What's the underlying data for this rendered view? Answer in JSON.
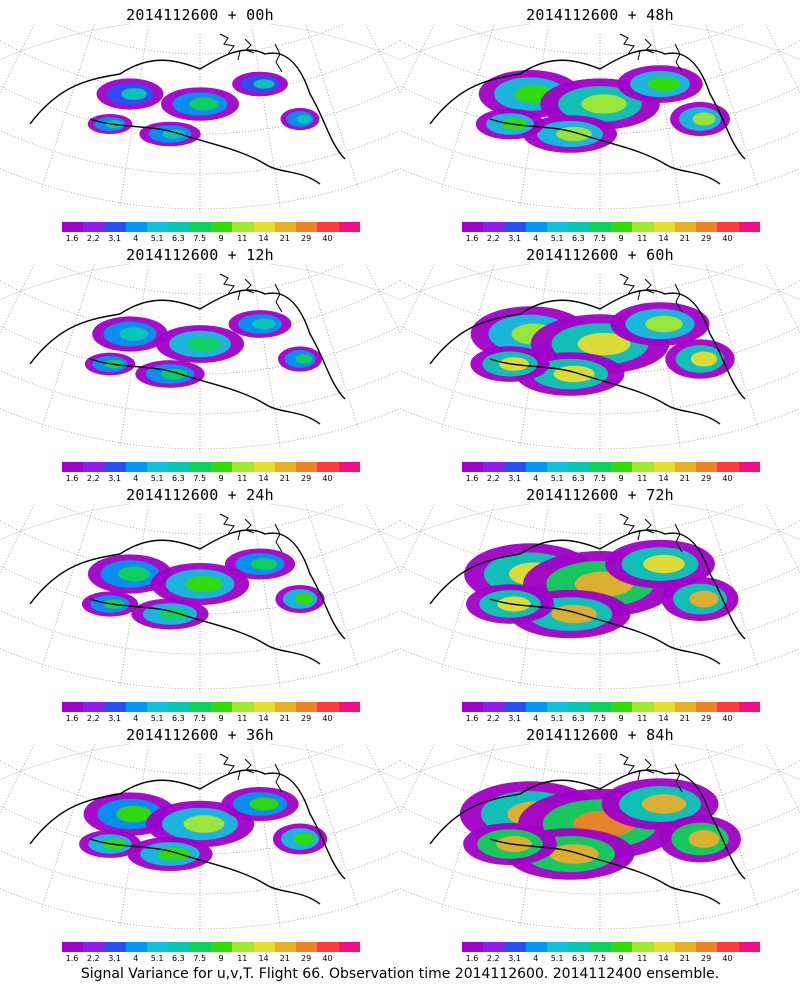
{
  "footer": "Signal Variance for u,v,T. Flight 66. Observation time 2014112600. 2014112400 ensemble.",
  "colorbar": {
    "labels": [
      "1.6",
      "2.2",
      "3.1",
      "4",
      "5.1",
      "6.3",
      "7.5",
      "9",
      "11",
      "14",
      "21",
      "29",
      "40"
    ],
    "colors": [
      "#a000c8",
      "#8c1ee6",
      "#2850f0",
      "#0096f0",
      "#14bedc",
      "#0ac8b4",
      "#0fd25a",
      "#32dc00",
      "#a0e632",
      "#e6dc32",
      "#e6af2d",
      "#f08228",
      "#fa3c3c",
      "#f00f82"
    ]
  },
  "panels": [
    {
      "title": "2014112600 + 00h",
      "level": 0.12
    },
    {
      "title": "2014112600 + 48h",
      "level": 0.45
    },
    {
      "title": "2014112600 + 12h",
      "level": 0.2
    },
    {
      "title": "2014112600 + 60h",
      "level": 0.6
    },
    {
      "title": "2014112600 + 24h",
      "level": 0.28
    },
    {
      "title": "2014112600 + 72h",
      "level": 0.72
    },
    {
      "title": "2014112600 + 36h",
      "level": 0.36
    },
    {
      "title": "2014112600 + 84h",
      "level": 0.8
    }
  ]
}
